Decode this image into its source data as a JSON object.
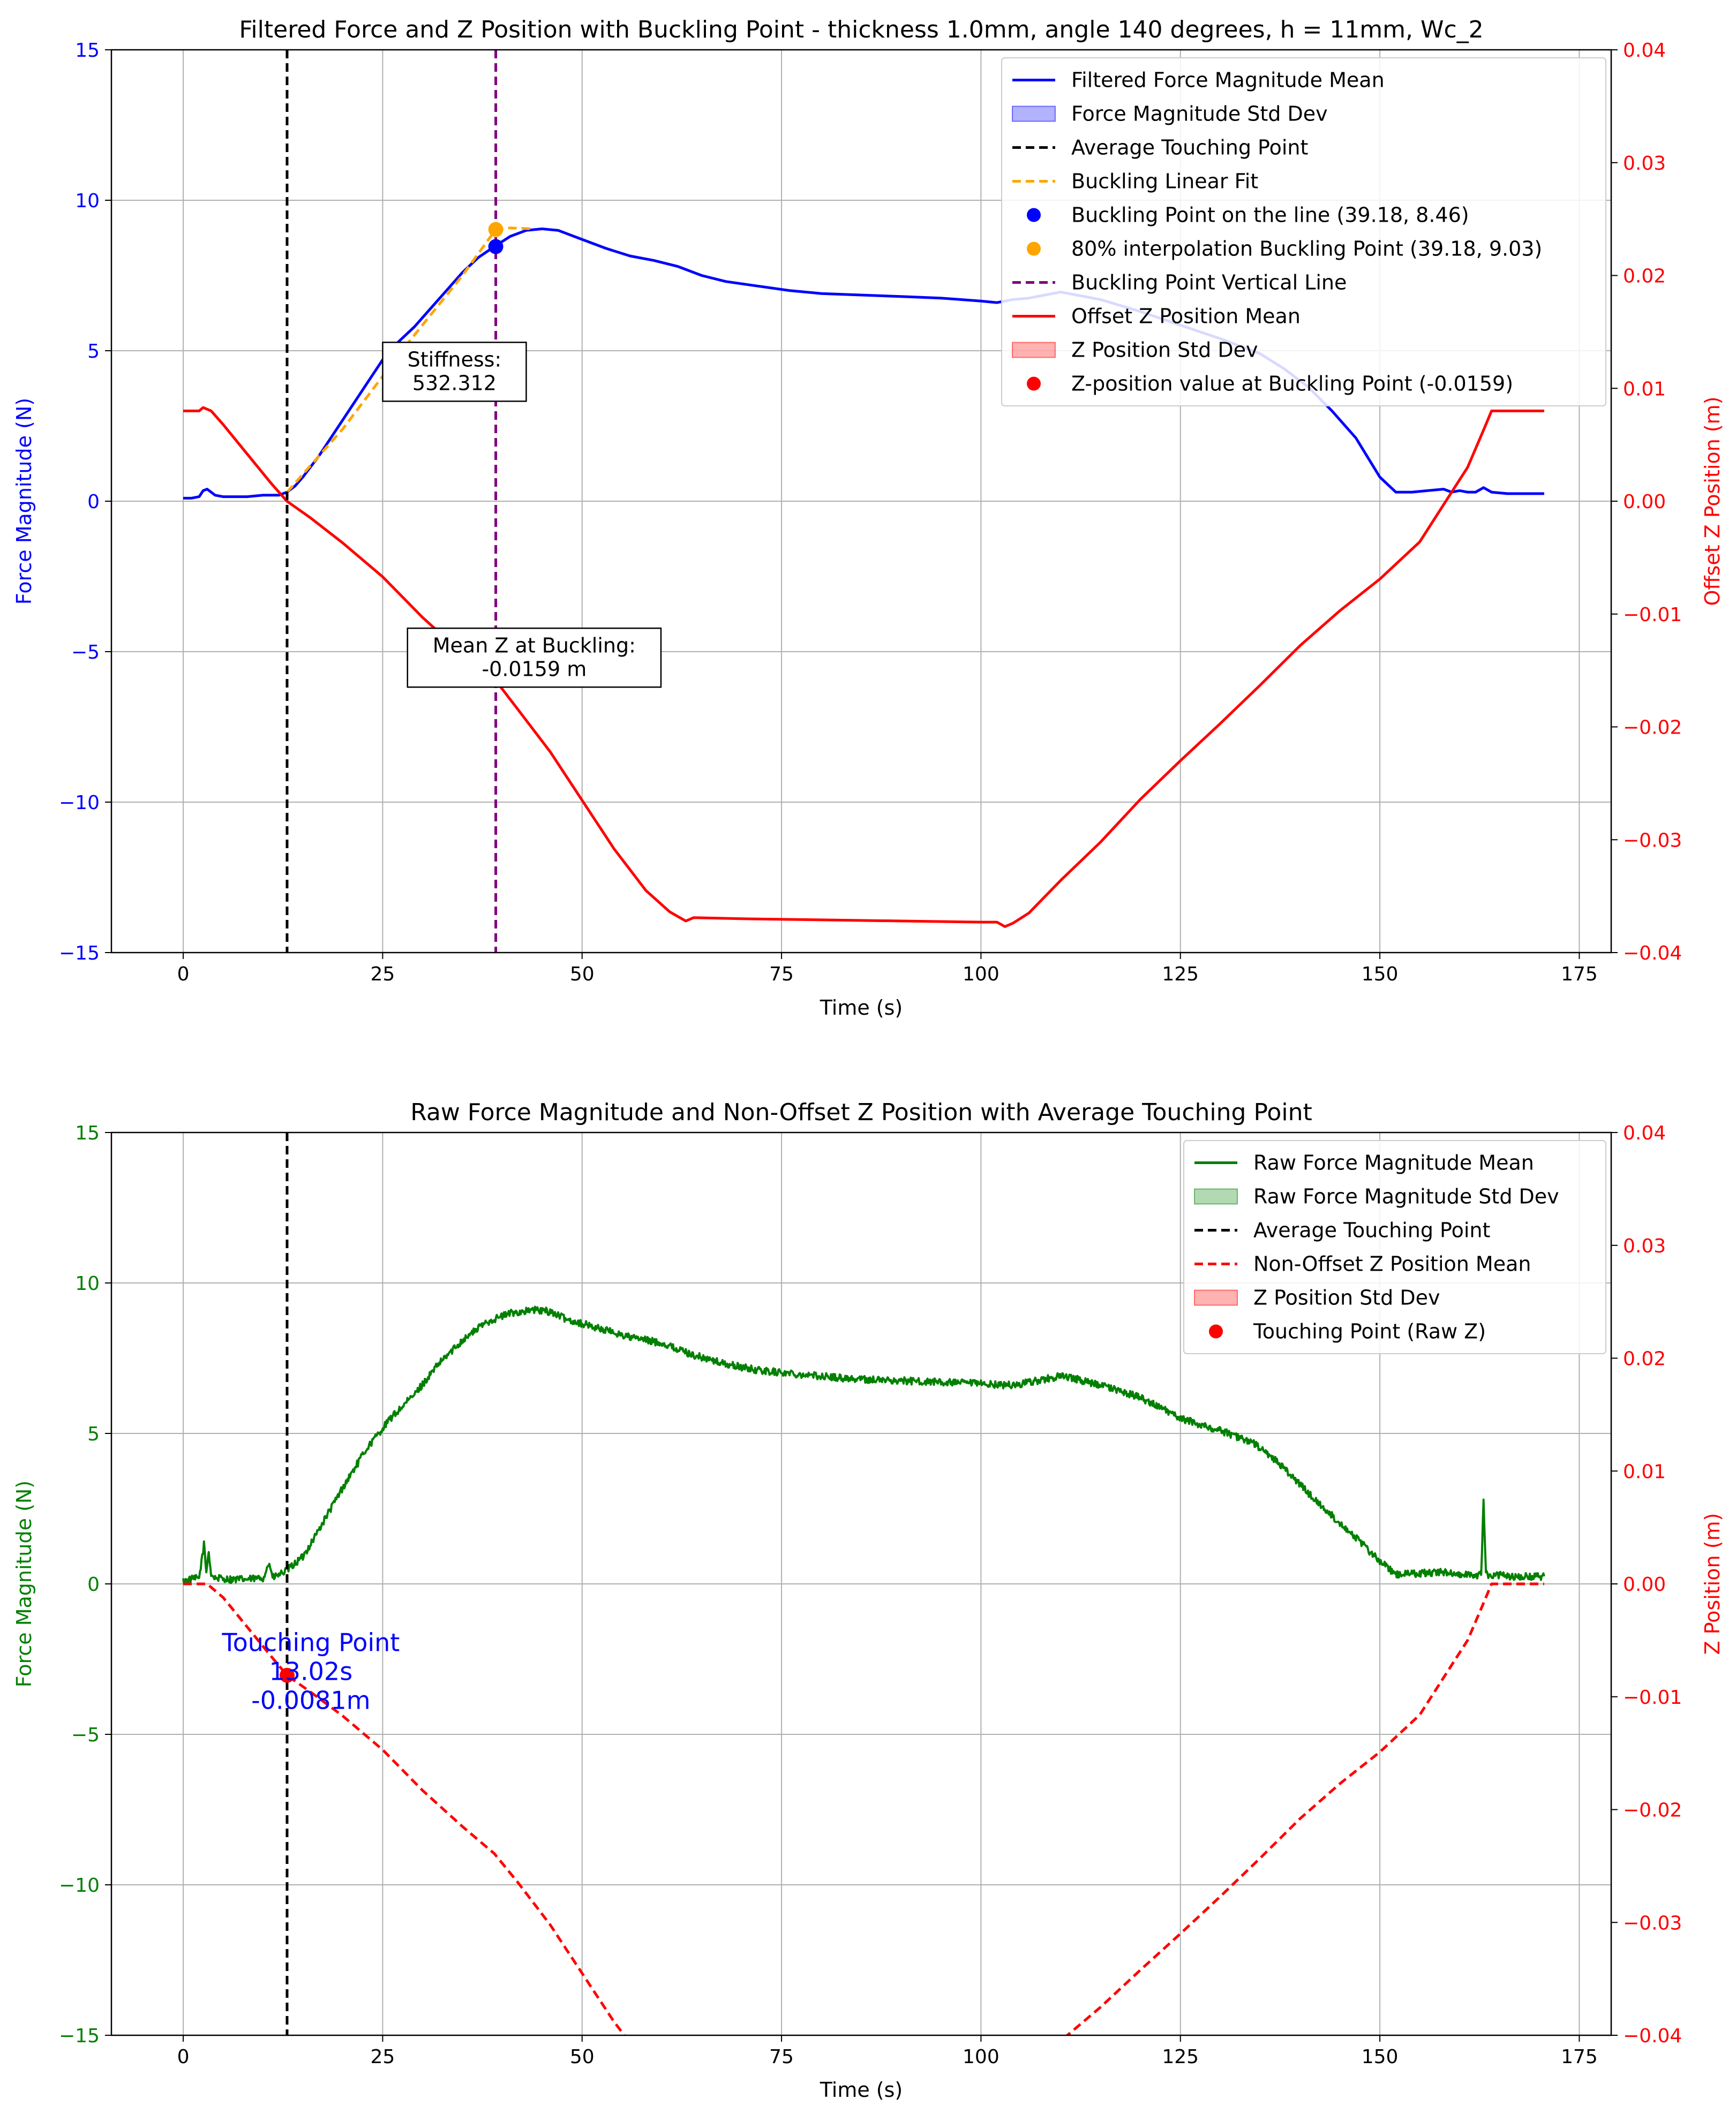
{
  "colors": {
    "blue": "#0000ff",
    "red": "#ff0000",
    "green": "#008000",
    "orange": "#ffa500",
    "purple": "#800080",
    "black": "#000000",
    "grid": "#b0b0b0"
  },
  "chart_data": [
    {
      "type": "line",
      "title": "Filtered Force and Z Position with Buckling Point - thickness 1.0mm, angle 140 degrees, h = 11mm, Wc_2",
      "xlabel": "Time (s)",
      "ylabel": "Force Magnitude (N)",
      "y2label": "Offset Z Position (m)",
      "xlim": [
        -9,
        179
      ],
      "ylim": [
        -15,
        15
      ],
      "y2lim": [
        -0.04,
        0.04
      ],
      "xticks": [
        0,
        25,
        50,
        75,
        100,
        125,
        150,
        175
      ],
      "xtick_labels": [
        "0",
        "25",
        "50",
        "75",
        "100",
        "125",
        "150",
        "175"
      ],
      "yticks": [
        -15,
        -10,
        -5,
        0,
        5,
        10,
        15
      ],
      "ytick_labels": [
        "−15",
        "−10",
        "−5",
        "0",
        "5",
        "10",
        "15"
      ],
      "y2ticks": [
        -0.04,
        -0.03,
        -0.02,
        -0.01,
        0.0,
        0.01,
        0.02,
        0.03,
        0.04
      ],
      "y2tick_labels": [
        "−0.04",
        "−0.03",
        "−0.02",
        "−0.01",
        "0.00",
        "0.01",
        "0.02",
        "0.03",
        "0.04"
      ],
      "grid": true,
      "legend_position": "upper right",
      "legend": [
        {
          "label": "Filtered Force Magnitude Mean",
          "kind": "line",
          "color": "#0000ff"
        },
        {
          "label": "Force Magnitude Std Dev",
          "kind": "patch",
          "color": "#0000ff"
        },
        {
          "label": "Average Touching Point",
          "kind": "dashed",
          "color": "#000000"
        },
        {
          "label": "Buckling Linear Fit",
          "kind": "dashed",
          "color": "#ffa500"
        },
        {
          "label": "Buckling Point on the line (39.18, 8.46)",
          "kind": "dot",
          "color": "#0000ff"
        },
        {
          "label": "80% interpolation Buckling Point (39.18, 9.03)",
          "kind": "dot",
          "color": "#ffa500"
        },
        {
          "label": "Buckling Point Vertical Line",
          "kind": "dashed",
          "color": "#800080"
        },
        {
          "label": "Offset Z Position Mean",
          "kind": "line",
          "color": "#ff0000"
        },
        {
          "label": "Z Position Std Dev",
          "kind": "patch",
          "color": "#ff0000"
        },
        {
          "label": "Z-position value at Buckling Point (-0.0159)",
          "kind": "dot",
          "color": "#ff0000"
        }
      ],
      "series": [
        {
          "name": "Filtered Force Magnitude Mean",
          "axis": "left",
          "color": "#0000ff",
          "style": "solid",
          "x": [
            0,
            1,
            2,
            2.5,
            3,
            3.5,
            4,
            5,
            6,
            8,
            10,
            12,
            13,
            14,
            15,
            17,
            19,
            21,
            23,
            25,
            27,
            29,
            31,
            33,
            35,
            37,
            39,
            41,
            43,
            45,
            47,
            50,
            53,
            56,
            59,
            62,
            65,
            68,
            72,
            76,
            80,
            85,
            90,
            95,
            100,
            102,
            104,
            106,
            108,
            110,
            112,
            115,
            120,
            125,
            130,
            135,
            138,
            141,
            144,
            147,
            150,
            152,
            154,
            156,
            158,
            159,
            160,
            161,
            162,
            163,
            164,
            166,
            168,
            170.6
          ],
          "y": [
            0.1,
            0.1,
            0.15,
            0.35,
            0.4,
            0.3,
            0.2,
            0.15,
            0.15,
            0.15,
            0.2,
            0.2,
            0.3,
            0.5,
            0.8,
            1.5,
            2.3,
            3.1,
            3.9,
            4.7,
            5.3,
            5.8,
            6.4,
            7.0,
            7.6,
            8.1,
            8.46,
            8.8,
            9.0,
            9.05,
            9.0,
            8.7,
            8.4,
            8.15,
            8.0,
            7.8,
            7.5,
            7.3,
            7.15,
            7.0,
            6.9,
            6.85,
            6.8,
            6.75,
            6.65,
            6.6,
            6.7,
            6.75,
            6.85,
            6.95,
            6.85,
            6.7,
            6.3,
            5.85,
            5.4,
            4.9,
            4.4,
            3.8,
            3.0,
            2.1,
            0.8,
            0.3,
            0.3,
            0.35,
            0.4,
            0.3,
            0.35,
            0.3,
            0.3,
            0.45,
            0.3,
            0.25,
            0.25,
            0.25
          ]
        },
        {
          "name": "Offset Z Position Mean",
          "axis": "right",
          "color": "#ff0000",
          "style": "solid",
          "x": [
            0,
            2,
            2.5,
            3.5,
            5,
            8,
            11,
            13,
            16,
            20,
            25,
            30,
            35,
            39.18,
            42,
            46,
            50,
            54,
            58,
            61,
            63,
            64,
            70,
            80,
            90,
            100,
            102,
            103,
            104,
            106,
            110,
            115,
            120,
            125,
            130,
            135,
            140,
            145,
            150,
            155,
            158,
            161,
            163,
            164,
            166,
            170.6
          ],
          "y": [
            0.008,
            0.008,
            0.0083,
            0.008,
            0.0068,
            0.0042,
            0.0016,
            0.0,
            -0.0015,
            -0.0037,
            -0.0067,
            -0.0103,
            -0.0135,
            -0.0159,
            -0.0185,
            -0.0222,
            -0.0265,
            -0.0308,
            -0.0345,
            -0.0364,
            -0.0372,
            -0.0369,
            -0.037,
            -0.0371,
            -0.0372,
            -0.0373,
            -0.0373,
            -0.0377,
            -0.0374,
            -0.0365,
            -0.0336,
            -0.0302,
            -0.0264,
            -0.023,
            -0.0197,
            -0.0163,
            -0.0128,
            -0.0097,
            -0.0069,
            -0.0036,
            -0.0003,
            0.003,
            0.0063,
            0.008,
            0.008,
            0.008
          ]
        },
        {
          "name": "Buckling Linear Fit",
          "axis": "left",
          "color": "#ffa500",
          "style": "dashed",
          "x": [
            13.02,
            20,
            28,
            35,
            39.18,
            41,
            44
          ],
          "y": [
            0.3,
            2.4,
            5.2,
            7.5,
            9.03,
            9.08,
            9.05
          ]
        }
      ],
      "vlines": [
        {
          "name": "Average Touching Point",
          "x": 13.02,
          "color": "#000000"
        },
        {
          "name": "Buckling Point Vertical Line",
          "x": 39.18,
          "color": "#800080"
        }
      ],
      "points": [
        {
          "name": "Buckling Point on the line",
          "x": 39.18,
          "y": 8.46,
          "axis": "left",
          "color": "#0000ff"
        },
        {
          "name": "80% interpolation Buckling Point",
          "x": 39.18,
          "y": 9.03,
          "axis": "left",
          "color": "#ffa500"
        },
        {
          "name": "Z-position value at Buckling Point",
          "x": 39.18,
          "y": -0.0159,
          "axis": "right",
          "color": "#ff0000"
        }
      ],
      "annotations": [
        {
          "lines": [
            "Stiffness:",
            "532.312"
          ],
          "x": 34,
          "y": 4.3
        },
        {
          "lines": [
            "Mean Z at Buckling:",
            "-0.0159 m"
          ],
          "x": 44,
          "y": -5.2
        }
      ]
    },
    {
      "type": "line",
      "title": "Raw Force Magnitude and Non-Offset Z Position with Average Touching Point",
      "xlabel": "Time (s)",
      "ylabel": "Force Magnitude (N)",
      "y2label": "Z Position (m)",
      "xlim": [
        -9,
        179
      ],
      "ylim": [
        -15,
        15
      ],
      "y2lim": [
        -0.04,
        0.04
      ],
      "xticks": [
        0,
        25,
        50,
        75,
        100,
        125,
        150,
        175
      ],
      "xtick_labels": [
        "0",
        "25",
        "50",
        "75",
        "100",
        "125",
        "150",
        "175"
      ],
      "yticks": [
        -15,
        -10,
        -5,
        0,
        5,
        10,
        15
      ],
      "ytick_labels": [
        "−15",
        "−10",
        "−5",
        "0",
        "5",
        "10",
        "15"
      ],
      "y2ticks": [
        -0.04,
        -0.03,
        -0.02,
        -0.01,
        0.0,
        0.01,
        0.02,
        0.03,
        0.04
      ],
      "y2tick_labels": [
        "−0.04",
        "−0.03",
        "−0.02",
        "−0.01",
        "0.00",
        "0.01",
        "0.02",
        "0.03",
        "0.04"
      ],
      "grid": true,
      "legend_position": "upper right",
      "legend": [
        {
          "label": "Raw Force Magnitude Mean",
          "kind": "line",
          "color": "#008000"
        },
        {
          "label": "Raw Force Magnitude Std Dev",
          "kind": "patch",
          "color": "#008000"
        },
        {
          "label": "Average Touching Point",
          "kind": "dashed",
          "color": "#000000"
        },
        {
          "label": "Non-Offset Z Position Mean",
          "kind": "dashed",
          "color": "#ff0000"
        },
        {
          "label": "Z Position Std Dev",
          "kind": "patch",
          "color": "#ff0000"
        },
        {
          "label": "Touching Point (Raw Z)",
          "kind": "dot",
          "color": "#ff0000"
        }
      ],
      "series": [
        {
          "name": "Raw Force Magnitude Mean",
          "axis": "left",
          "color": "#008000",
          "style": "solid",
          "noise": 0.12,
          "x": [
            0,
            2,
            2.6,
            2.9,
            3.2,
            3.5,
            4,
            6,
            8,
            10,
            10.8,
            11.2,
            12,
            13,
            15,
            17,
            20,
            23,
            26,
            29,
            32,
            35,
            38,
            41,
            44,
            46,
            48,
            52,
            56,
            60,
            64,
            68,
            72,
            76,
            80,
            85,
            90,
            95,
            100,
            104,
            107,
            110,
            112,
            115,
            120,
            125,
            130,
            134,
            137,
            140,
            143,
            146,
            149,
            152,
            155,
            158,
            161,
            162.7,
            163,
            163.3,
            164,
            167,
            170.6
          ],
          "y": [
            0.1,
            0.2,
            1.3,
            0.4,
            1.1,
            0.3,
            0.2,
            0.15,
            0.15,
            0.2,
            0.7,
            0.2,
            0.3,
            0.45,
            0.9,
            1.8,
            3.2,
            4.5,
            5.5,
            6.3,
            7.3,
            8.1,
            8.7,
            9.0,
            9.1,
            9.05,
            8.8,
            8.5,
            8.2,
            8.0,
            7.6,
            7.3,
            7.1,
            7.0,
            6.9,
            6.8,
            6.75,
            6.7,
            6.65,
            6.6,
            6.75,
            6.9,
            6.8,
            6.6,
            6.2,
            5.5,
            5.1,
            4.7,
            4.1,
            3.3,
            2.5,
            1.8,
            1.0,
            0.3,
            0.35,
            0.4,
            0.3,
            0.3,
            2.8,
            0.3,
            0.3,
            0.25,
            0.25
          ]
        },
        {
          "name": "Non-Offset Z Position Mean",
          "axis": "right",
          "color": "#ff0000",
          "style": "dashed",
          "x": [
            0,
            3,
            5,
            8,
            11,
            13,
            16,
            20,
            25,
            30,
            35,
            39,
            42,
            46,
            50,
            54,
            58,
            110,
            115,
            120,
            125,
            130,
            135,
            140,
            145,
            150,
            155,
            158,
            161,
            163,
            164,
            166,
            170.6
          ],
          "y": [
            0.0,
            0.0,
            -0.0012,
            -0.0038,
            -0.0064,
            -0.0081,
            -0.0096,
            -0.0117,
            -0.0147,
            -0.0183,
            -0.0215,
            -0.0239,
            -0.0265,
            -0.0302,
            -0.0345,
            -0.0388,
            -0.0425,
            -0.0405,
            -0.0375,
            -0.0342,
            -0.031,
            -0.0277,
            -0.0243,
            -0.0208,
            -0.0177,
            -0.0149,
            -0.0116,
            -0.0083,
            -0.005,
            -0.0017,
            0.0,
            0.0,
            0.0
          ]
        }
      ],
      "vlines": [
        {
          "name": "Average Touching Point",
          "x": 13.02,
          "color": "#000000"
        }
      ],
      "points": [
        {
          "name": "Touching Point (Raw Z)",
          "x": 13.02,
          "y": -0.0081,
          "axis": "right",
          "color": "#ff0000"
        }
      ],
      "annotations": [
        {
          "lines": [
            "Touching Point",
            "13.02s",
            "-0.0081m"
          ],
          "x": 16,
          "y": -0.0078,
          "axis": "right",
          "color": "#0000ff"
        }
      ]
    }
  ]
}
